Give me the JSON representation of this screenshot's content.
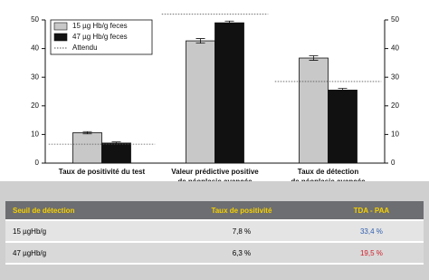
{
  "chart_data": {
    "type": "bar",
    "categories": [
      [
        "Taux de positivité du test"
      ],
      [
        "Valeur prédictive positive",
        "de néoplasie avancée"
      ],
      [
        "Taux de détection",
        "de néoplasie avancée"
      ]
    ],
    "series": [
      {
        "name": "15 µg Hb/g feces",
        "color": "#c8c8c8",
        "values": [
          10.6,
          42.7,
          36.7
        ],
        "errors": [
          0.4,
          0.8,
          0.8
        ]
      },
      {
        "name": "47 µg Hb/g feces",
        "color": "#111111",
        "values": [
          7.0,
          49.0,
          25.5
        ],
        "errors": [
          0.4,
          0.6,
          0.6
        ]
      }
    ],
    "expected": {
      "name": "Attendu",
      "values": [
        6.6,
        52,
        28.5
      ]
    },
    "ylim": [
      0,
      50
    ],
    "yticks": [
      0,
      10,
      20,
      30,
      40,
      50
    ],
    "y2lim": [
      0,
      50
    ],
    "y2ticks": [
      0,
      10,
      20,
      30,
      40,
      50
    ]
  },
  "table": {
    "header": [
      "Seuil de détection",
      "Taux de positivité",
      "TDA - PAA"
    ],
    "rows": [
      [
        "15 µgHb/g",
        "7,8 %",
        "33,4 %"
      ],
      [
        "47 µgHb/g",
        "6,3 %",
        "19,5 %"
      ]
    ],
    "value_colors": [
      "#2f5fb0",
      "#d0202a"
    ]
  }
}
